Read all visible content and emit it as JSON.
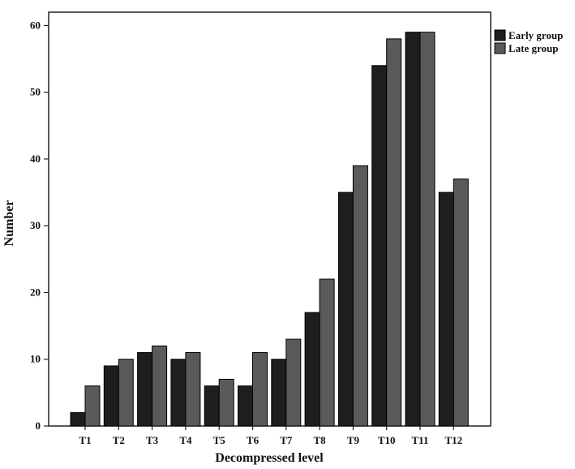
{
  "chart_data": {
    "type": "bar",
    "title": "",
    "xlabel": "Decompressed level",
    "ylabel": "Number",
    "categories": [
      "T1",
      "T2",
      "T3",
      "T4",
      "T5",
      "T6",
      "T7",
      "T8",
      "T9",
      "T10",
      "T11",
      "T12"
    ],
    "series": [
      {
        "name": "Early group",
        "color": "#1e1e1e",
        "values": [
          2,
          9,
          11,
          10,
          6,
          6,
          10,
          17,
          35,
          54,
          59,
          35
        ]
      },
      {
        "name": "Late group",
        "color": "#5a5a5a",
        "values": [
          6,
          10,
          12,
          11,
          7,
          11,
          13,
          22,
          39,
          58,
          59,
          37
        ]
      }
    ],
    "ylim": [
      0,
      62
    ],
    "yticks": [
      0,
      10,
      20,
      30,
      40,
      50,
      60
    ],
    "grid": false,
    "legend_position": "top-right"
  }
}
